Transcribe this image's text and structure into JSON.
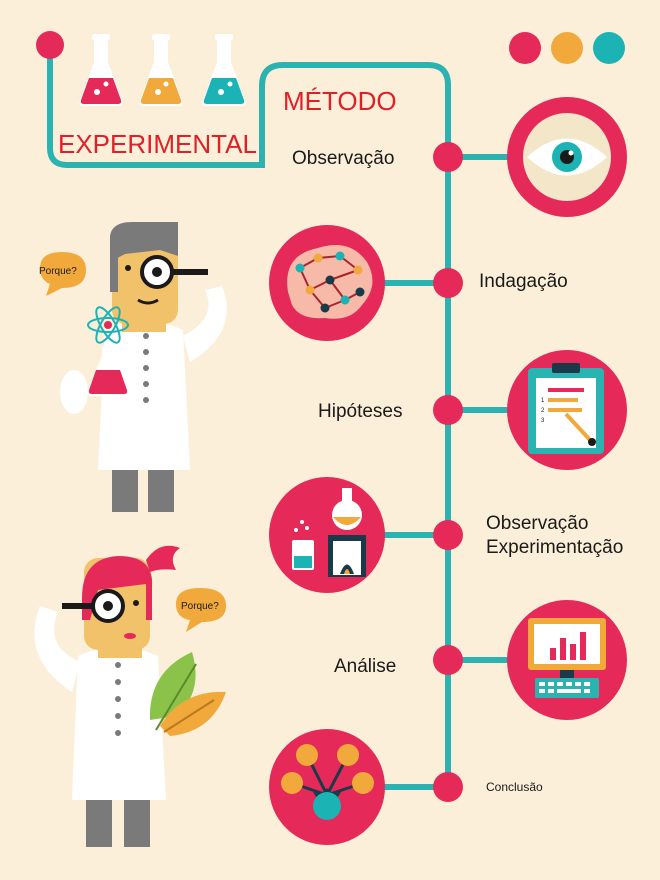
{
  "title": {
    "line1": "MÉTODO",
    "line2": "EXPERIMENTAL"
  },
  "steps": [
    {
      "label": "Observação",
      "icon": "eye-icon"
    },
    {
      "label": "Indagação",
      "icon": "brain-network-icon"
    },
    {
      "label": "Hipóteses",
      "icon": "clipboard-list-icon"
    },
    {
      "label": "Observação",
      "label2": "Experimentação",
      "icon": "lab-flasks-icon"
    },
    {
      "label": "Análise",
      "icon": "computer-chart-icon"
    },
    {
      "label": "Conclusão",
      "icon": "connection-hub-icon"
    }
  ],
  "speech": {
    "scientist1": "Porque?",
    "scientist2": "Porque?"
  },
  "colors": {
    "background": "#fbefd9",
    "timeline": "#2ab3b1",
    "node": "#e52a5a",
    "title_red": "#e01f26",
    "dot_pink": "#e52a5a",
    "dot_orange": "#f2a93b",
    "dot_teal": "#1bb3b3"
  }
}
